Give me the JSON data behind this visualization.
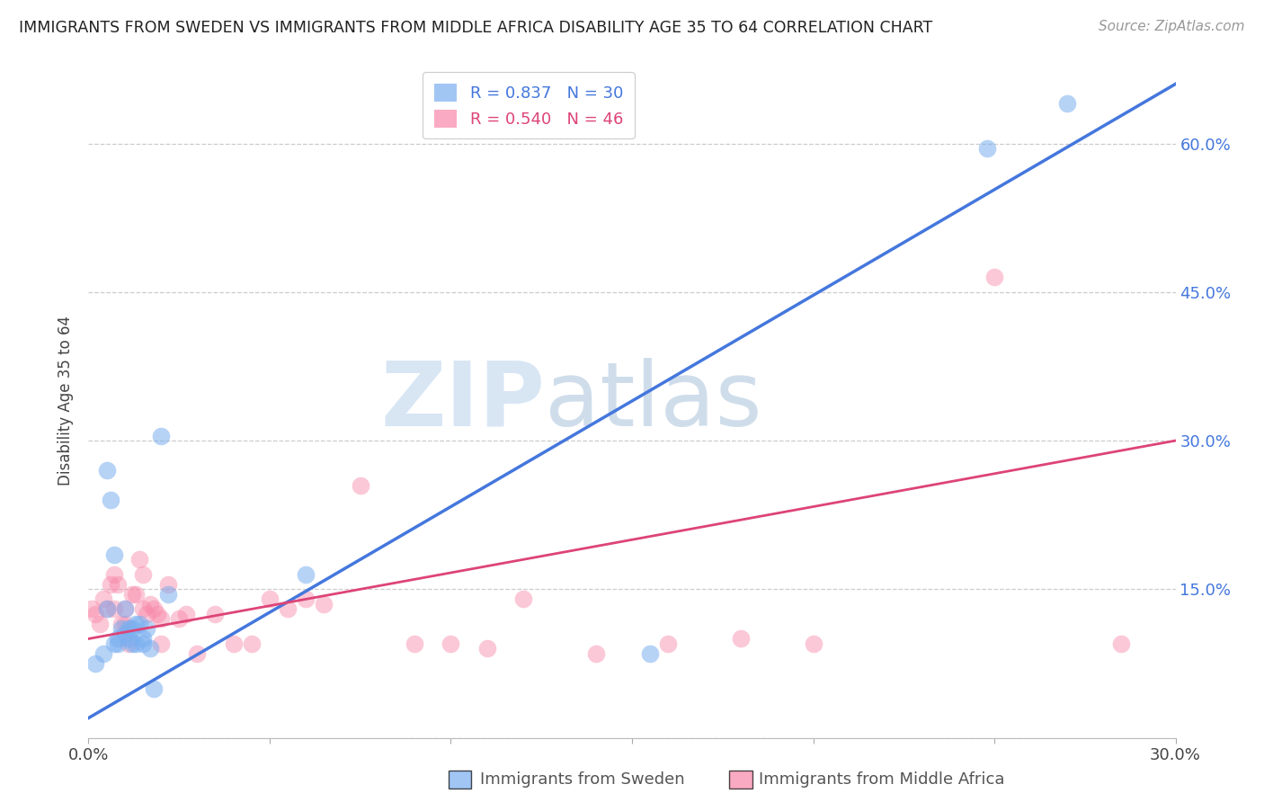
{
  "title": "IMMIGRANTS FROM SWEDEN VS IMMIGRANTS FROM MIDDLE AFRICA DISABILITY AGE 35 TO 64 CORRELATION CHART",
  "source": "Source: ZipAtlas.com",
  "ylabel": "Disability Age 35 to 64",
  "legend_labels": [
    "Immigrants from Sweden",
    "Immigrants from Middle Africa"
  ],
  "watermark_zip": "ZIP",
  "watermark_atlas": "atlas",
  "blue_R": 0.837,
  "blue_N": 30,
  "pink_R": 0.54,
  "pink_N": 46,
  "xlim": [
    0.0,
    0.3
  ],
  "ylim": [
    0.0,
    0.68
  ],
  "yticks": [
    0.0,
    0.15,
    0.3,
    0.45,
    0.6
  ],
  "ytick_labels": [
    "",
    "15.0%",
    "30.0%",
    "45.0%",
    "60.0%"
  ],
  "xticks": [
    0.0,
    0.05,
    0.1,
    0.15,
    0.2,
    0.25,
    0.3
  ],
  "xtick_labels": [
    "0.0%",
    "",
    "",
    "",
    "",
    "",
    "30.0%"
  ],
  "blue_color": "#7aaff0",
  "pink_color": "#f887a8",
  "blue_line_color": "#4477dd",
  "pink_line_color": "#dd4477",
  "blue_line_x": [
    0.0,
    0.3
  ],
  "blue_line_y": [
    0.02,
    0.66
  ],
  "pink_line_x": [
    0.0,
    0.3
  ],
  "pink_line_y": [
    0.1,
    0.3
  ],
  "blue_scatter_x": [
    0.002,
    0.004,
    0.005,
    0.005,
    0.006,
    0.007,
    0.007,
    0.008,
    0.008,
    0.009,
    0.01,
    0.01,
    0.011,
    0.011,
    0.012,
    0.012,
    0.013,
    0.013,
    0.014,
    0.015,
    0.015,
    0.016,
    0.017,
    0.018,
    0.02,
    0.022,
    0.06,
    0.155,
    0.248,
    0.27
  ],
  "blue_scatter_y": [
    0.075,
    0.085,
    0.27,
    0.13,
    0.24,
    0.095,
    0.185,
    0.1,
    0.095,
    0.11,
    0.105,
    0.13,
    0.1,
    0.11,
    0.11,
    0.095,
    0.115,
    0.095,
    0.115,
    0.1,
    0.095,
    0.11,
    0.09,
    0.05,
    0.305,
    0.145,
    0.165,
    0.085,
    0.595,
    0.64
  ],
  "pink_scatter_x": [
    0.001,
    0.002,
    0.003,
    0.004,
    0.005,
    0.006,
    0.007,
    0.007,
    0.008,
    0.009,
    0.01,
    0.01,
    0.011,
    0.012,
    0.013,
    0.014,
    0.015,
    0.015,
    0.016,
    0.017,
    0.018,
    0.019,
    0.02,
    0.02,
    0.022,
    0.025,
    0.027,
    0.03,
    0.035,
    0.04,
    0.045,
    0.05,
    0.055,
    0.06,
    0.065,
    0.075,
    0.09,
    0.1,
    0.11,
    0.12,
    0.14,
    0.16,
    0.18,
    0.2,
    0.25,
    0.285
  ],
  "pink_scatter_y": [
    0.13,
    0.125,
    0.115,
    0.14,
    0.13,
    0.155,
    0.13,
    0.165,
    0.155,
    0.115,
    0.13,
    0.115,
    0.095,
    0.145,
    0.145,
    0.18,
    0.165,
    0.13,
    0.125,
    0.135,
    0.13,
    0.125,
    0.12,
    0.095,
    0.155,
    0.12,
    0.125,
    0.085,
    0.125,
    0.095,
    0.095,
    0.14,
    0.13,
    0.14,
    0.135,
    0.255,
    0.095,
    0.095,
    0.09,
    0.14,
    0.085,
    0.095,
    0.1,
    0.095,
    0.465,
    0.095
  ]
}
